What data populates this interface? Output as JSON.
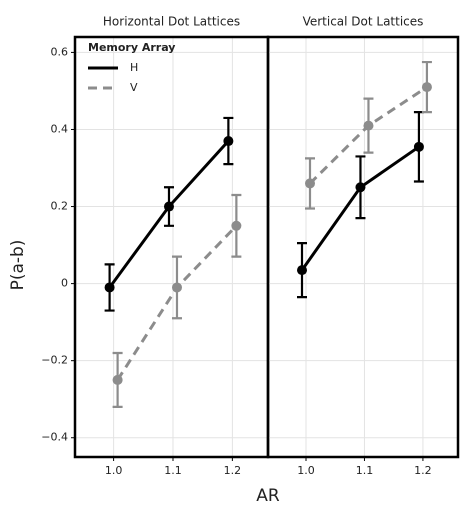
{
  "chart_data": [
    {
      "type": "line",
      "title": "Horizontal Dot Lattices",
      "xlabel": "AR",
      "ylabel": "P(a-b)",
      "x": [
        1.0,
        1.1,
        1.2
      ],
      "xlim": [
        0.935,
        1.26
      ],
      "xticks": [
        {
          "value": 1.0,
          "label": "1.0"
        },
        1.1,
        1.2
      ],
      "ylim": [
        -0.45,
        0.64
      ],
      "yticks": [
        {
          "value": -0.4,
          "label": "−0.4"
        },
        {
          "value": -0.2,
          "label": "−0.2"
        },
        0,
        0.2,
        0.4,
        0.6
      ],
      "grid": true,
      "legend_title": "Memory Array",
      "legend": "upper left",
      "series": [
        {
          "name": "H",
          "color": "#000000",
          "linestyle": "solid",
          "values": [
            -0.01,
            0.2,
            0.37
          ],
          "errors": [
            0.06,
            0.05,
            0.06
          ]
        },
        {
          "name": "V",
          "color": "#8c8c8c",
          "linestyle": "dashed",
          "values": [
            -0.25,
            -0.01,
            0.15
          ],
          "errors": [
            0.07,
            0.08,
            0.08
          ]
        }
      ]
    },
    {
      "type": "line",
      "title": "Vertical Dot Lattices",
      "x": [
        1.0,
        1.1,
        1.2
      ],
      "xlim": [
        0.935,
        1.26
      ],
      "xticks": [
        {
          "value": 1.0,
          "label": "1.0"
        },
        1.1,
        1.2
      ],
      "ylim": [
        -0.45,
        0.64
      ],
      "yticks": [
        -0.4,
        -0.2,
        0,
        0.2,
        0.4,
        0.6
      ],
      "grid": true,
      "series": [
        {
          "color": "#000000",
          "linestyle": "solid",
          "values": [
            0.035,
            0.25,
            0.355
          ],
          "errors": [
            0.07,
            0.08,
            0.09
          ]
        },
        {
          "color": "#8c8c8c",
          "linestyle": "dashed",
          "values": [
            0.26,
            0.41,
            0.51
          ],
          "errors": [
            0.065,
            0.07,
            0.065
          ]
        }
      ]
    }
  ]
}
